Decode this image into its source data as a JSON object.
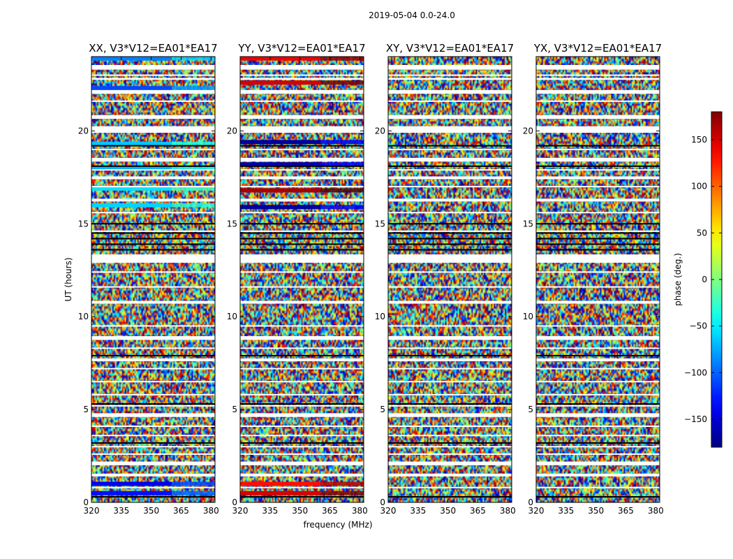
{
  "figure": {
    "suptitle": "2019-05-04 0.0-24.0",
    "xlabel": "frequency (MHz)",
    "ylabel": "UT (hours)",
    "colorbar": {
      "label": "phase (deg.)",
      "ticks": [
        150,
        100,
        50,
        0,
        -50,
        -100,
        -150
      ],
      "tick_labels": [
        "150",
        "100",
        "50",
        "0",
        "−50",
        "−100",
        "−150"
      ],
      "range": [
        -180,
        180
      ],
      "colormap": "jet"
    }
  },
  "chart_data": [
    {
      "type": "heatmap",
      "title": "XX, V3*V12=EA01*EA17",
      "xlim": [
        320,
        382
      ],
      "ylim": [
        0,
        24
      ],
      "xticks": [
        320,
        335,
        350,
        365,
        380
      ],
      "xtick_labels": [
        "320",
        "335",
        "350",
        "365",
        "380"
      ],
      "yticks": [
        0,
        5,
        10,
        15,
        20
      ],
      "ytick_labels": [
        "0",
        "5",
        "10",
        "15",
        "20"
      ],
      "coherent_bands": [
        {
          "t": 23.9,
          "phase": -90
        },
        {
          "t": 22.3,
          "phase": -110
        },
        {
          "t": 19.3,
          "phase": -65
        },
        {
          "t": 18.0,
          "phase": -70
        },
        {
          "t": 16.9,
          "phase": -55
        },
        {
          "t": 16.0,
          "phase": -60
        },
        {
          "t": 1.0,
          "phase": -140
        },
        {
          "t": 0.5,
          "phase": -130
        }
      ]
    },
    {
      "type": "heatmap",
      "title": "YY, V3*V12=EA01*EA17",
      "xlim": [
        320,
        382
      ],
      "ylim": [
        0,
        24
      ],
      "xticks": [
        320,
        335,
        350,
        365,
        380
      ],
      "xtick_labels": [
        "320",
        "335",
        "350",
        "365",
        "380"
      ],
      "yticks": [
        0,
        5,
        10,
        15,
        20
      ],
      "ytick_labels": [
        "0",
        "5",
        "10",
        "15",
        "20"
      ],
      "coherent_bands": [
        {
          "t": 23.9,
          "phase": 140
        },
        {
          "t": 22.6,
          "phase": 150
        },
        {
          "t": 19.4,
          "phase": -170
        },
        {
          "t": 18.2,
          "phase": -165
        },
        {
          "t": 16.8,
          "phase": 165
        },
        {
          "t": 15.9,
          "phase": -170
        },
        {
          "t": 1.0,
          "phase": 130
        },
        {
          "t": 0.5,
          "phase": 150
        }
      ]
    },
    {
      "type": "heatmap",
      "title": "XY, V3*V12=EA01*EA17",
      "xlim": [
        320,
        382
      ],
      "ylim": [
        0,
        24
      ],
      "xticks": [
        320,
        335,
        350,
        365,
        380
      ],
      "xtick_labels": [
        "320",
        "335",
        "350",
        "365",
        "380"
      ],
      "yticks": [
        0,
        5,
        10,
        15,
        20
      ],
      "ytick_labels": [
        "0",
        "5",
        "10",
        "15",
        "20"
      ],
      "coherent_bands": []
    },
    {
      "type": "heatmap",
      "title": "YX, V3*V12=EA01*EA17",
      "xlim": [
        320,
        382
      ],
      "ylim": [
        0,
        24
      ],
      "xticks": [
        320,
        335,
        350,
        365,
        380
      ],
      "xtick_labels": [
        "320",
        "335",
        "350",
        "365",
        "380"
      ],
      "yticks": [
        0,
        5,
        10,
        15,
        20
      ],
      "ytick_labels": [
        "0",
        "5",
        "10",
        "15",
        "20"
      ],
      "coherent_bands": []
    }
  ]
}
